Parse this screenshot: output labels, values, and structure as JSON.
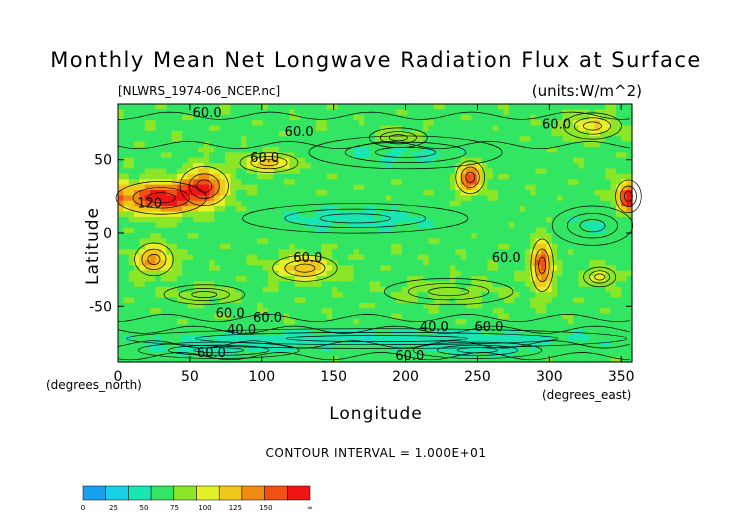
{
  "chart_data": {
    "type": "heatmap",
    "title": "Monthly Mean Net Longwave Radiation Flux at Surface",
    "subtitle": "[NLWRS_1974-06_NCEP.nc]",
    "units": "(units:W/m^2)",
    "xlabel": "Longitude",
    "xunit": "(degrees_east)",
    "ylabel": "Latitude",
    "yunit": "(degrees_north)",
    "xlim": [
      0,
      357.5
    ],
    "ylim": [
      -88,
      88
    ],
    "xticks": [
      0,
      50,
      100,
      150,
      200,
      250,
      300,
      350
    ],
    "yticks": [
      50,
      0,
      -50
    ],
    "contour_interval_text": "CONTOUR INTERVAL = 1.000E+01",
    "contour_labels": [
      {
        "text": "60.0",
        "lon": 62,
        "lat": 82
      },
      {
        "text": "60.0",
        "lon": 126,
        "lat": 69
      },
      {
        "text": "60.0",
        "lon": 102,
        "lat": 51
      },
      {
        "text": "60.0",
        "lon": 305,
        "lat": 74
      },
      {
        "text": "120",
        "lon": 22,
        "lat": 20
      },
      {
        "text": "60.0",
        "lon": 132,
        "lat": -17
      },
      {
        "text": "60.0",
        "lon": 270,
        "lat": -17
      },
      {
        "text": "60.0",
        "lon": 78,
        "lat": -55
      },
      {
        "text": "60.0",
        "lon": 104,
        "lat": -58
      },
      {
        "text": "40.0",
        "lon": 86,
        "lat": -66
      },
      {
        "text": "40.0",
        "lon": 220,
        "lat": -64
      },
      {
        "text": "60.0",
        "lon": 258,
        "lat": -64
      },
      {
        "text": "60.0",
        "lon": 65,
        "lat": -82
      },
      {
        "text": "60.0",
        "lon": 203,
        "lat": -84
      }
    ],
    "colorbar": {
      "labels": [
        "0",
        "25",
        "50",
        "75",
        "100",
        "125",
        "150",
        "∞"
      ],
      "colors": [
        "#1aa0f0",
        "#1ad0e6",
        "#1ae6b4",
        "#32e664",
        "#8ce628",
        "#e6f028",
        "#f0c81a",
        "#f08c14",
        "#f05014",
        "#f01414"
      ]
    },
    "fields": {
      "base": 58,
      "blobs": [
        {
          "lon": 30,
          "lat": 24,
          "rx": 28,
          "ry": 10,
          "amp": 95
        },
        {
          "lon": 60,
          "lat": 32,
          "rx": 15,
          "ry": 12,
          "amp": 70
        },
        {
          "lon": 105,
          "lat": 48,
          "rx": 18,
          "ry": 6,
          "amp": 45
        },
        {
          "lon": 245,
          "lat": 38,
          "rx": 9,
          "ry": 10,
          "amp": 80
        },
        {
          "lon": 355,
          "lat": 25,
          "rx": 8,
          "ry": 10,
          "amp": 75
        },
        {
          "lon": 25,
          "lat": -18,
          "rx": 12,
          "ry": 10,
          "amp": 55
        },
        {
          "lon": 130,
          "lat": -24,
          "rx": 20,
          "ry": 8,
          "amp": 50
        },
        {
          "lon": 295,
          "lat": -22,
          "rx": 7,
          "ry": 16,
          "amp": 80
        },
        {
          "lon": 335,
          "lat": -30,
          "rx": 10,
          "ry": 6,
          "amp": 30
        },
        {
          "lon": 330,
          "lat": 73,
          "rx": 18,
          "ry": 8,
          "amp": 35
        },
        {
          "lon": 195,
          "lat": 65,
          "rx": 18,
          "ry": 6,
          "amp": 22
        },
        {
          "lon": 165,
          "lat": 10,
          "rx": 70,
          "ry": 9,
          "amp": -18
        },
        {
          "lon": 330,
          "lat": 5,
          "rx": 25,
          "ry": 12,
          "amp": -12
        },
        {
          "lon": 200,
          "lat": 55,
          "rx": 60,
          "ry": 10,
          "amp": -14
        },
        {
          "lon": 180,
          "lat": -72,
          "rx": 180,
          "ry": 6,
          "amp": -22
        },
        {
          "lon": 70,
          "lat": -80,
          "rx": 50,
          "ry": 5,
          "amp": -14
        },
        {
          "lon": 250,
          "lat": -80,
          "rx": 40,
          "ry": 5,
          "amp": -20
        },
        {
          "lon": 230,
          "lat": -40,
          "rx": 40,
          "ry": 8,
          "amp": 10
        },
        {
          "lon": 60,
          "lat": -42,
          "rx": 25,
          "ry": 6,
          "amp": 12
        }
      ]
    }
  }
}
